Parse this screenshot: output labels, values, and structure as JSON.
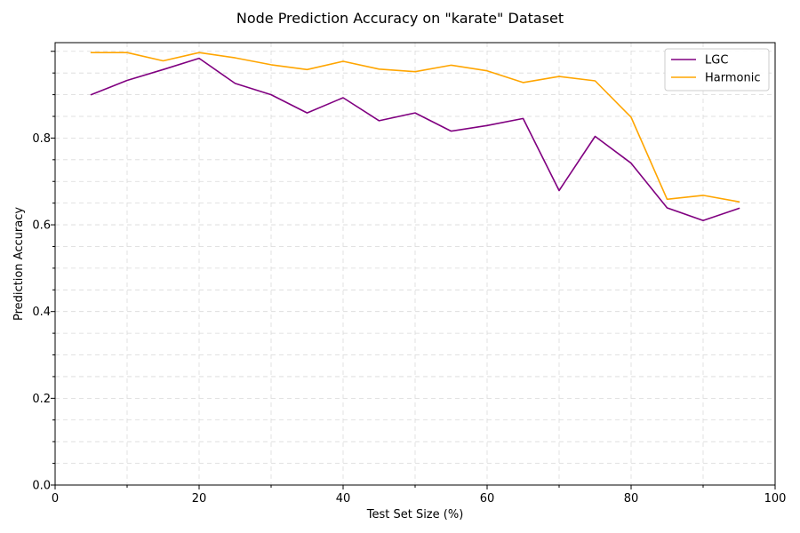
{
  "chart_data": {
    "type": "line",
    "title": "Node Prediction Accuracy on \"karate\" Dataset",
    "xlabel": "Test Set Size (%)",
    "ylabel": "Prediction Accuracy",
    "xlim": [
      0,
      100
    ],
    "ylim": [
      0,
      1.02
    ],
    "xticks": [
      0,
      20,
      40,
      60,
      80,
      100
    ],
    "xtick_labels": [
      "0",
      "20",
      "40",
      "60",
      "80",
      "100"
    ],
    "yticks": [
      0.0,
      0.2,
      0.4,
      0.6,
      0.8
    ],
    "ytick_labels": [
      "0.0",
      "0.2",
      "0.4",
      "0.6",
      "0.8"
    ],
    "grid": true,
    "legend_position": "top-right",
    "x": [
      5,
      10,
      15,
      20,
      25,
      30,
      35,
      40,
      45,
      50,
      55,
      60,
      65,
      70,
      75,
      80,
      85,
      90,
      95
    ],
    "series": [
      {
        "name": "LGC",
        "color": "#800080",
        "values": [
          0.9,
          0.933,
          0.958,
          0.984,
          0.926,
          0.9,
          0.858,
          0.893,
          0.84,
          0.858,
          0.816,
          0.829,
          0.845,
          0.679,
          0.804,
          0.742,
          0.639,
          0.61,
          0.638
        ]
      },
      {
        "name": "Harmonic",
        "color": "#FFA500",
        "values": [
          0.997,
          0.997,
          0.978,
          0.997,
          0.985,
          0.969,
          0.958,
          0.977,
          0.959,
          0.953,
          0.968,
          0.955,
          0.928,
          0.942,
          0.932,
          0.848,
          0.659,
          0.668,
          0.653
        ]
      }
    ]
  }
}
